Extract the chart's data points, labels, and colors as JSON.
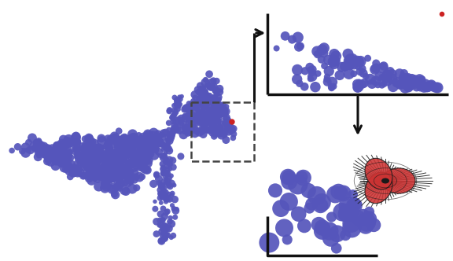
{
  "fig_width": 5.76,
  "fig_height": 3.32,
  "dpi": 100,
  "bg_color": "#ffffff",
  "point_blue": "#5555bb",
  "point_red": "#cc2222",
  "arrow_color": "#111111",
  "axis_color": "#111111",
  "dash_color": "#444444",
  "odf_red": "#cc3333",
  "odf_dark": "#1a1a1a",
  "odf_mid": "#aa2222"
}
